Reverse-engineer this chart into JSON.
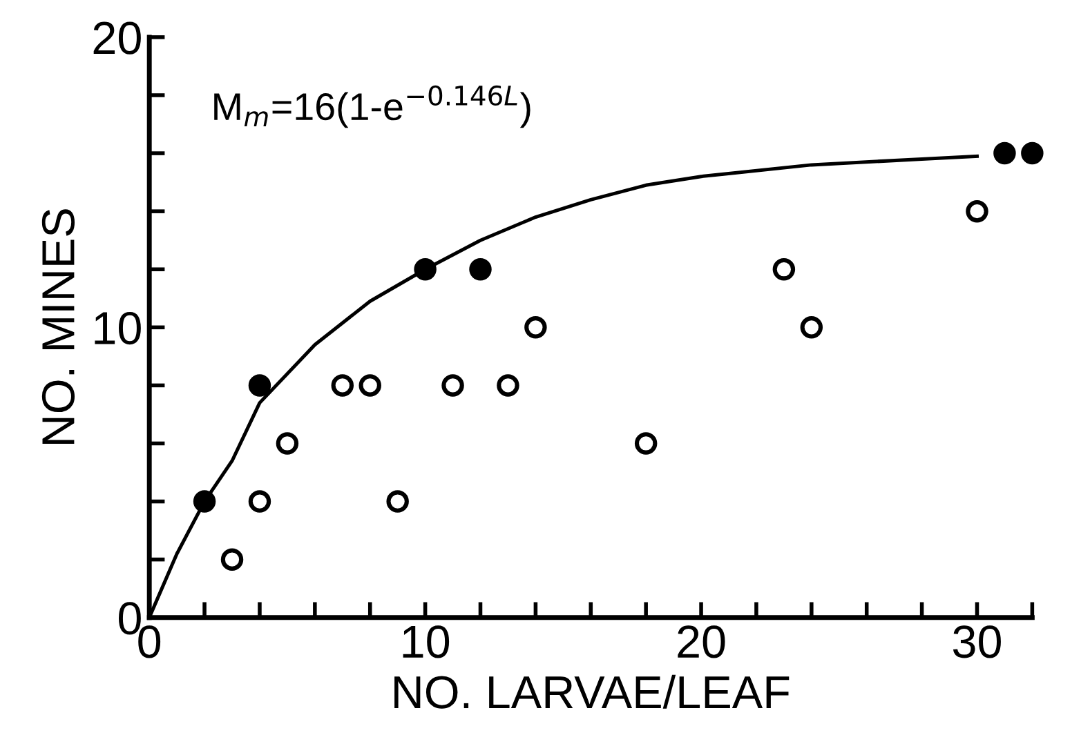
{
  "chart_data": {
    "type": "scatter",
    "xlabel": "NO. LARVAE/LEAF",
    "ylabel": "NO. MINES",
    "annotations": [
      "M$_{m}$=16(1-e$^{−0.146L}$)"
    ],
    "xlim": [
      0,
      32
    ],
    "ylim": [
      0,
      20
    ],
    "xticks": [
      0,
      {
        "value": 2,
        "label": null
      },
      {
        "value": 4,
        "label": null
      },
      {
        "value": 6,
        "label": null
      },
      {
        "value": 8,
        "label": null
      },
      10,
      {
        "value": 12,
        "label": null
      },
      {
        "value": 14,
        "label": null
      },
      {
        "value": 16,
        "label": null
      },
      {
        "value": 18,
        "label": null
      },
      20,
      {
        "value": 22,
        "label": null
      },
      {
        "value": 24,
        "label": null
      },
      {
        "value": 26,
        "label": null
      },
      {
        "value": 28,
        "label": null
      },
      30,
      {
        "value": 32,
        "label": null
      }
    ],
    "yticks": [
      0,
      {
        "value": 2,
        "label": null
      },
      {
        "value": 4,
        "label": null
      },
      {
        "value": 6,
        "label": null
      },
      {
        "value": 8,
        "label": null
      },
      10,
      {
        "value": 12,
        "label": null
      },
      {
        "value": 14,
        "label": null
      },
      {
        "value": 16,
        "label": null
      },
      {
        "value": 18,
        "label": null
      },
      20
    ],
    "grid": false,
    "legend": false,
    "series": [
      {
        "type": "line",
        "color": "#000000",
        "marker": "none",
        "line_style": "solid",
        "x": [
          0,
          1,
          2,
          3,
          4,
          6,
          8,
          10,
          12,
          14,
          16,
          18,
          20,
          24,
          28,
          30
        ],
        "values": [
          0,
          2.2,
          4,
          5.4,
          7.4,
          9.4,
          10.9,
          12,
          13,
          13.8,
          14.4,
          14.9,
          15.2,
          15.6,
          15.8,
          15.9
        ]
      },
      {
        "color": "#000000",
        "marker": "circle",
        "x": [
          2,
          4,
          10,
          12,
          31,
          32
        ],
        "values": [
          4,
          8,
          12,
          12,
          16,
          16
        ]
      },
      {
        "color": "#ffffff",
        "marker": "circle",
        "x": [
          3,
          4,
          5,
          7,
          8,
          9,
          11,
          13,
          14,
          18,
          23,
          24,
          30
        ],
        "values": [
          2,
          4,
          6,
          8,
          8,
          4,
          8,
          8,
          10,
          6,
          12,
          10,
          14
        ]
      }
    ]
  }
}
